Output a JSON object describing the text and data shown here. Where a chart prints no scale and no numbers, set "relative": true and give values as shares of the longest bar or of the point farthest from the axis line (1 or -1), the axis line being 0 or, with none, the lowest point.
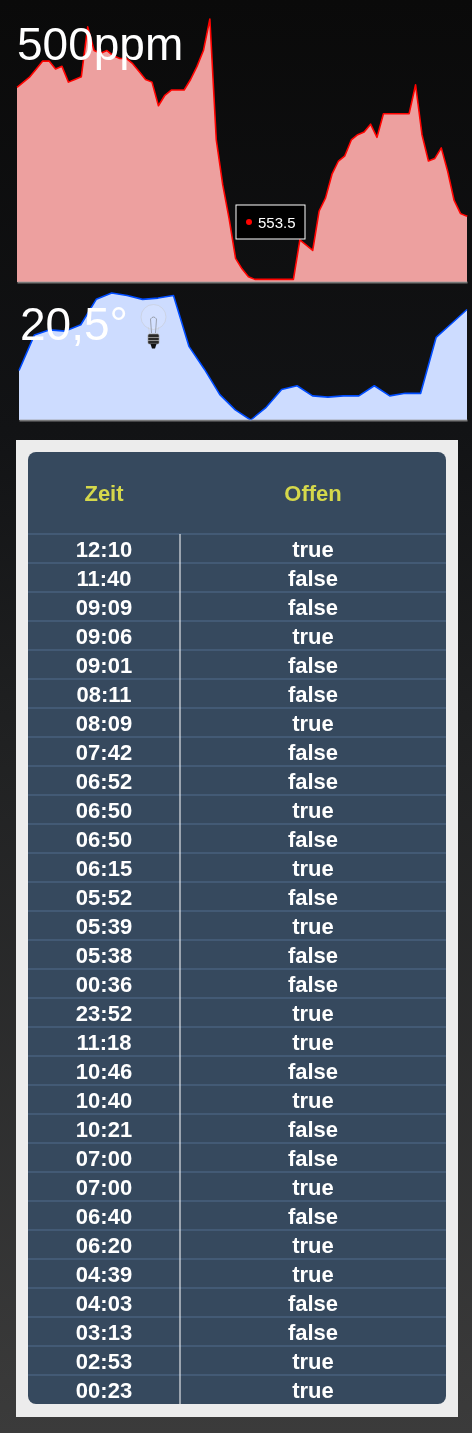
{
  "chart_data": [
    {
      "type": "area",
      "title": "500ppm",
      "relative": true,
      "categories": [
        null,
        null,
        null,
        null,
        null,
        null,
        null,
        null,
        null,
        null,
        null,
        null,
        null,
        null,
        null,
        null,
        null,
        null,
        null,
        null,
        null,
        null,
        null,
        null,
        null,
        null,
        null,
        null,
        null,
        null,
        null,
        null,
        null,
        null,
        null,
        null,
        null,
        null,
        null,
        null,
        null,
        null,
        null,
        null,
        null,
        null,
        null,
        null,
        null,
        null,
        null,
        null,
        null,
        null,
        null,
        null,
        null,
        null,
        null,
        null,
        null,
        null,
        null,
        null,
        null,
        null,
        null,
        null,
        null,
        null,
        null
      ],
      "series": [
        {
          "color": "#eda09f",
          "values": [
            0.74,
            0.76,
            0.78,
            0.81,
            0.84,
            0.84,
            0.81,
            0.82,
            0.76,
            0.77,
            0.78,
            0.97,
            0.88,
            0.87,
            0.88,
            0.86,
            0.85,
            0.85,
            0.83,
            0.8,
            0.77,
            0.76,
            0.67,
            0.71,
            0.73,
            0.73,
            0.73,
            0.77,
            0.82,
            0.88,
            1.0,
            0.54,
            0.37,
            0.24,
            0.09,
            0.05,
            0.02,
            0.01,
            0.01,
            0.01,
            0.01,
            0.01,
            0.01,
            0.01,
            0.16,
            0.14,
            0.12,
            0.27,
            0.32,
            0.41,
            0.46,
            0.48,
            0.54,
            0.56,
            0.57,
            0.6,
            0.55,
            0.64,
            0.64,
            0.64,
            0.64,
            0.64,
            0.75,
            0.56,
            0.46,
            0.47,
            0.51,
            0.42,
            0.31,
            0.26,
            0.25
          ]
        }
      ],
      "annotations": [
        "553.5"
      ]
    },
    {
      "type": "area",
      "title": "20,5°",
      "relative": true,
      "categories": [
        null,
        null,
        null,
        null,
        null,
        null,
        null,
        null,
        null,
        null,
        null,
        null,
        null,
        null,
        null,
        null,
        null,
        null,
        null,
        null,
        null,
        null,
        null,
        null,
        null,
        null,
        null,
        null,
        null,
        null
      ],
      "series": [
        {
          "color": "#cddcff",
          "values": [
            0.39,
            0.67,
            0.71,
            0.7,
            0.75,
            0.95,
            1.0,
            0.98,
            0.95,
            0.96,
            0.98,
            0.58,
            0.4,
            0.2,
            0.08,
            0.0,
            0.1,
            0.24,
            0.27,
            0.19,
            0.18,
            0.19,
            0.19,
            0.27,
            0.19,
            0.21,
            0.21,
            0.65,
            0.76,
            0.87
          ]
        }
      ]
    },
    {
      "type": "other",
      "annotations": [
        "Zeit",
        "Offen",
        "12:10",
        "true",
        "11:40",
        "false",
        "09:09",
        "false",
        "09:06",
        "true",
        "09:01",
        "false",
        "08:11",
        "false",
        "08:09",
        "true",
        "07:42",
        "false",
        "06:52",
        "false",
        "06:50",
        "true",
        "06:50",
        "false",
        "06:15",
        "true",
        "05:52",
        "false",
        "05:39",
        "true",
        "05:38",
        "false",
        "00:36",
        "false",
        "23:52",
        "true",
        "11:18",
        "true",
        "10:46",
        "false",
        "10:40",
        "true",
        "10:21",
        "false",
        "07:00",
        "false",
        "07:00",
        "true",
        "06:40",
        "false",
        "06:20",
        "true",
        "04:39",
        "true",
        "04:03",
        "false",
        "03:13",
        "false",
        "02:53",
        "true",
        "00:23",
        "true"
      ]
    }
  ]
}
